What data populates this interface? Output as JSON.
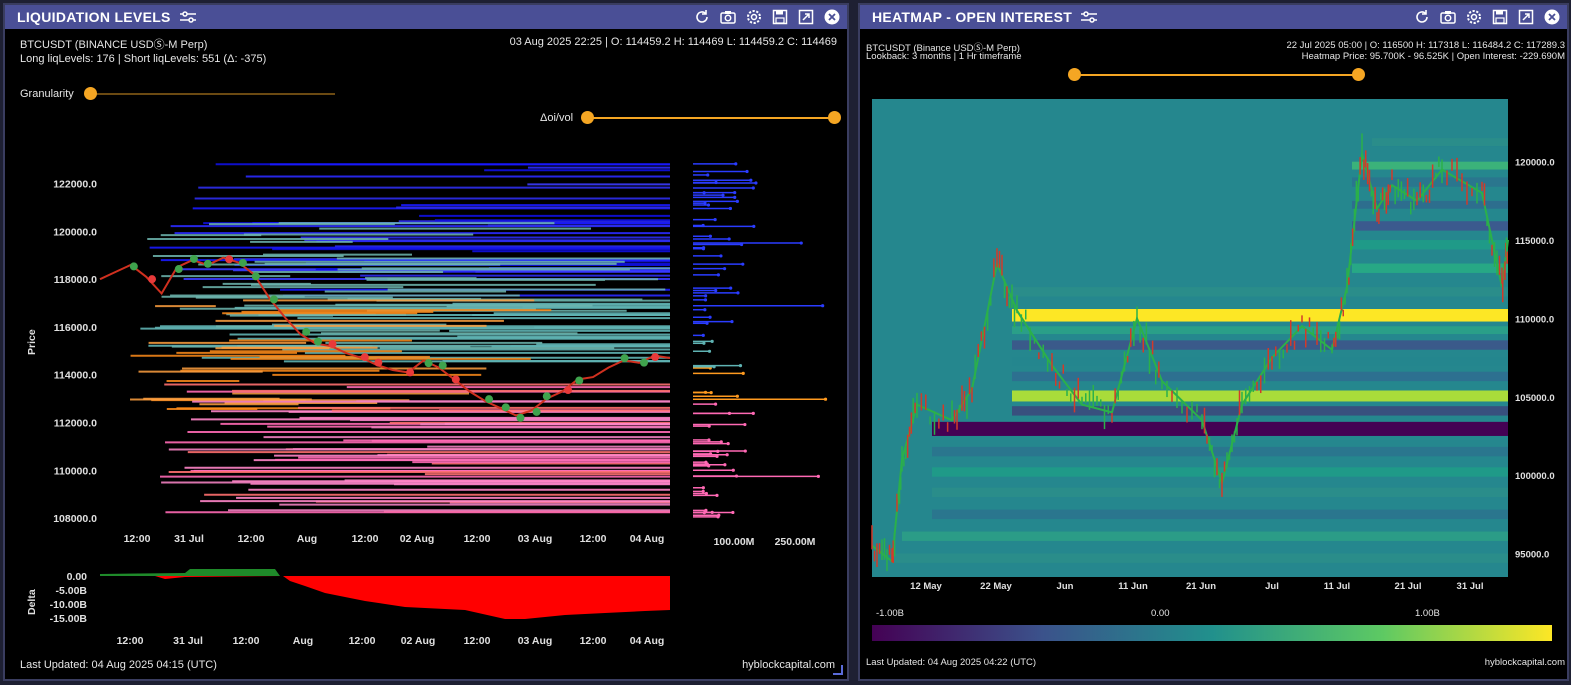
{
  "left": {
    "title": "LIQUIDATION LEVELS",
    "symbol": "BTCUSDT (BINANCE USDⓈ-M Perp)",
    "ohlc": "03 Aug 2025 22:25 | O: 114459.2 H: 114469 L: 114459.2 C: 114469",
    "levels": "Long liqLevels: 176 | Short liqLevels: 551 (Δ: -375)",
    "granularity_label": "Granularity",
    "oivol_label": "Δoi/vol",
    "y_label": "Price",
    "y_ticks": [
      "122000.0",
      "120000.0",
      "118000.0",
      "116000.0",
      "114000.0",
      "112000.0",
      "110000.0",
      "108000.0"
    ],
    "x_ticks": [
      "12:00",
      "31 Jul",
      "12:00",
      "Aug",
      "12:00",
      "02 Aug",
      "12:00",
      "03 Aug",
      "12:00",
      "04 Aug"
    ],
    "side_ticks": [
      "100.00M",
      "250.00M"
    ],
    "delta_label": "Delta",
    "delta_ticks": [
      "0.00",
      "-5.00B",
      "-10.00B",
      "-15.00B"
    ],
    "delta_x_ticks": [
      "12:00",
      "31 Jul",
      "12:00",
      "Aug",
      "12:00",
      "02 Aug",
      "12:00",
      "03 Aug",
      "12:00",
      "04 Aug"
    ],
    "updated": "Last Updated: 04 Aug 2025 04:15 (UTC)",
    "brand": "hyblockcapital.com"
  },
  "right": {
    "title": "HEATMAP - OPEN INTEREST",
    "symbol": "BTCUSDT (Binance USDⓈ-M Perp)",
    "lookback": "Lookback: 3 months | 1 Hr timeframe",
    "ohlc": "22 Jul 2025 05:00 | O: 116500 H: 117318 L: 116484.2 C: 117289.3",
    "heatmap_info": "Heatmap Price: 95.700K - 96.525K | Open Interest: -229.690M",
    "y_ticks": [
      "120000.0",
      "115000.0",
      "110000.0",
      "105000.0",
      "100000.0",
      "95000.0"
    ],
    "x_ticks": [
      "12 May",
      "22 May",
      "Jun",
      "11 Jun",
      "21 Jun",
      "Jul",
      "11 Jul",
      "21 Jul",
      "31 Jul"
    ],
    "colorbar_ticks": [
      "-1.00B",
      "0.00",
      "1.00B"
    ],
    "updated": "Last Updated: 04 Aug 2025 04:22 (UTC)",
    "brand": "hyblockcapital.com"
  },
  "colors": {
    "header": "#4a4f96",
    "slider": "#f5a623",
    "long": "#ff69b4",
    "short": "#2020ff",
    "delta": "#ff0000"
  },
  "icons": [
    "sliders-icon",
    "refresh-icon",
    "camera-icon",
    "gear-icon",
    "save-icon",
    "expand-icon",
    "close-icon"
  ]
}
